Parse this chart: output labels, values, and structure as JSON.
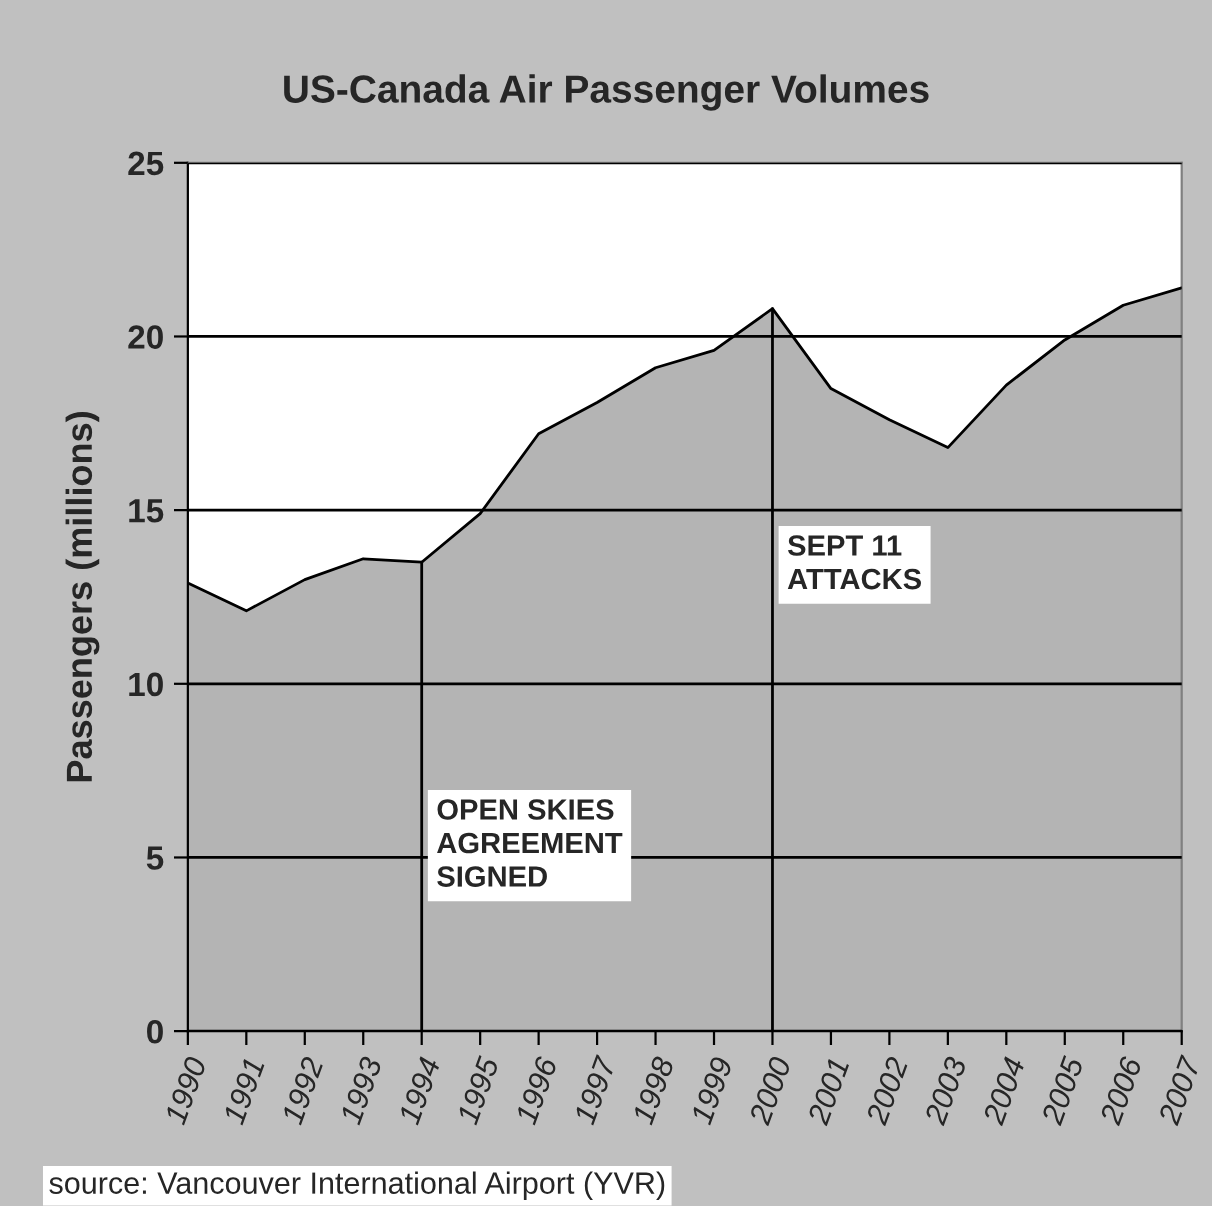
{
  "chart_data": {
    "type": "area",
    "title": "US-Canada Air Passenger Volumes",
    "ylabel": "Passengers (millions)",
    "categories": [
      "1990",
      "1991",
      "1992",
      "1993",
      "1994",
      "1995",
      "1996",
      "1997",
      "1998",
      "1999",
      "2000",
      "2001",
      "2002",
      "2003",
      "2004",
      "2005",
      "2006",
      "2007"
    ],
    "series": [
      {
        "color": "#b4b4b4",
        "values": [
          12.9,
          12.1,
          13.0,
          13.6,
          13.5,
          14.9,
          17.2,
          18.1,
          19.1,
          19.6,
          20.8,
          18.5,
          17.6,
          16.8,
          18.6,
          19.9,
          20.9,
          21.4
        ]
      }
    ],
    "ylim": [
      0,
      25
    ],
    "yticks": [
      0,
      5,
      10,
      15,
      20,
      25
    ],
    "grid": "y",
    "legend": false,
    "ref_lines": [
      {
        "axis": "x",
        "value": "1994",
        "label": "OPEN SKIES\nAGREEMENT\nSIGNED",
        "color": "#000000"
      },
      {
        "axis": "x",
        "value": "2000",
        "label": "SEPT 11\nATTACKS",
        "color": "#000000"
      }
    ],
    "annotations": [
      "source: Vancouver International Airport (YVR)"
    ]
  }
}
